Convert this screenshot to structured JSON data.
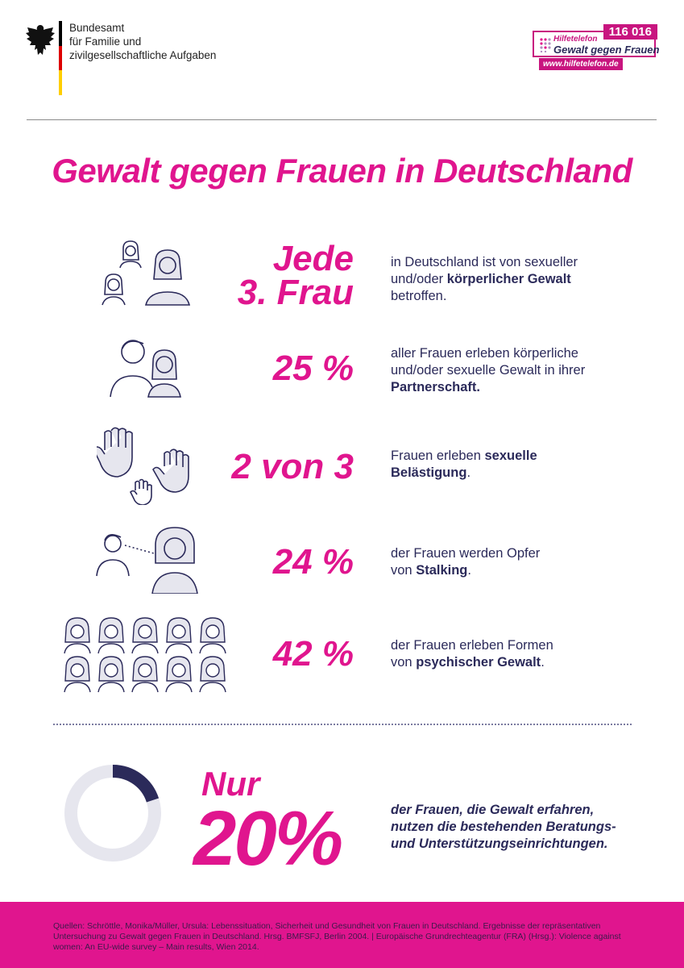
{
  "header": {
    "ministry_lines": [
      "Bundesamt",
      "für Familie und",
      "zivilgesellschaftliche Aufgaben"
    ],
    "flag_colors": [
      "#000000",
      "#dd0000",
      "#ffce00"
    ],
    "hotline": {
      "name": "Hilfetelefon",
      "title": "Gewalt gegen Frauen",
      "number": "116 016",
      "url": "www.hilfetelefon.de"
    }
  },
  "title": "Gewalt gegen Frauen in Deutschland",
  "colors": {
    "accent": "#e0158e",
    "text": "#2b2a5a",
    "icon_fill": "#e6e6ee"
  },
  "stats": [
    {
      "icon": "three-women-icon",
      "value_lines": [
        "Jede",
        "3. Frau"
      ],
      "text_parts": [
        "in Deutschland ist von sexueller",
        "und/oder ",
        "körperlicher Gewalt",
        "betroffen."
      ]
    },
    {
      "icon": "couple-icon",
      "value": "25 %",
      "text_parts": [
        "aller Frauen erleben körperliche",
        "und/oder sexuelle Gewalt in ihrer",
        "Partnerschaft."
      ]
    },
    {
      "icon": "hands-icon",
      "value": "2 von 3",
      "text_parts": [
        "Frauen erleben ",
        "sexuelle",
        "Belästigung",
        "."
      ]
    },
    {
      "icon": "stalker-icon",
      "value": "24 %",
      "text_parts": [
        "der Frauen werden Opfer",
        "von ",
        "Stalking",
        "."
      ]
    },
    {
      "icon": "ten-women-icon",
      "value": "42 %",
      "text_parts": [
        "der Frauen erleben Formen",
        "von ",
        "psychischer Gewalt",
        "."
      ]
    }
  ],
  "summary": {
    "label": "Nur",
    "value": "20%",
    "fraction": 0.2,
    "text_lines": [
      "der Frauen, die Gewalt erfahren,",
      "nutzen die bestehenden Beratungs-",
      "und Unterstützungseinrichtungen."
    ]
  },
  "sources": "Quellen: Schröttle, Monika/Müller, Ursula: Lebenssituation, Sicherheit und Gesundheit von Frauen in Deutschland. Ergebnisse der repräsentativen Untersuchung zu Gewalt gegen Frauen in Deutschland. Hrsg. BMFSFJ, Berlin 2004. | Europäische Grundrechteagentur (FRA) (Hrsg.): Violence against women: An EU-wide survey – Main results, Wien 2014."
}
